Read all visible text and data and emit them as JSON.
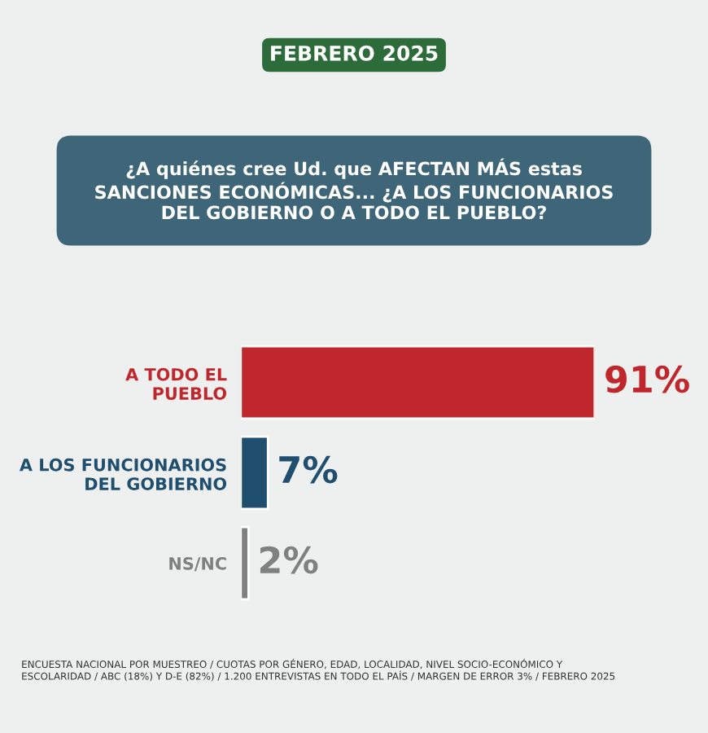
{
  "chart_data": {
    "type": "bar",
    "orientation": "horizontal",
    "subtitle": "FEBRERO 2025",
    "title": "¿A quiénes cree Ud. que AFECTAN MÁS estas\nSANCIONES ECONÓMICAS... ¿A LOS FUNCIONARIOS\nDEL GOBIERNO O A TODO EL PUEBLO?",
    "categories": [
      "A TODO EL\nPUEBLO",
      "A LOS FUNCIONARIOS\nDEL GOBIERNO",
      "NS/NC"
    ],
    "values": [
      91,
      7,
      2
    ],
    "colors": [
      "#c0272d",
      "#1f4e6e",
      "#808080"
    ],
    "value_labels": [
      "91%",
      "7%",
      "2%"
    ],
    "annotations": [
      "ENCUESTA NACIONAL POR MUESTREO / CUOTAS POR GÉNERO, EDAD, LOCALIDAD, NIVEL SOCIO-ECONÓMICO Y\nESCOLARIDAD / ABC (18%) Y D-E (82%) / 1.200 ENTREVISTAS EN TODO EL PAÍS / MARGEN DE ERROR 3% / FEBRERO 2025"
    ]
  }
}
